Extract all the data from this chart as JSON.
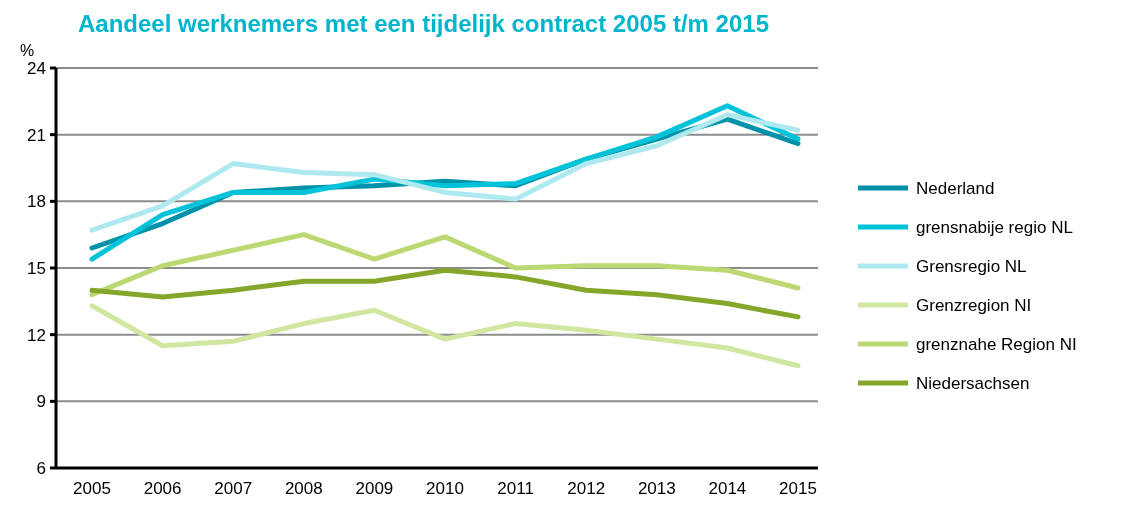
{
  "chart_data": {
    "type": "line",
    "title": "Aandeel werknemers met een tijdelijk contract 2005 t/m 2015",
    "ylabel": "%",
    "categories": [
      "2005",
      "2006",
      "2007",
      "2008",
      "2009",
      "2010",
      "2011",
      "2012",
      "2013",
      "2014",
      "2015"
    ],
    "ylim": [
      6,
      24
    ],
    "yticks": [
      6,
      9,
      12,
      15,
      18,
      21,
      24
    ],
    "grid": "y",
    "legend": "right",
    "line_style": "solid",
    "marker": "none",
    "series": [
      {
        "name": "Nederland",
        "color": "#0092a8",
        "values": [
          15.9,
          17.0,
          18.4,
          18.6,
          18.7,
          18.9,
          18.7,
          19.9,
          20.8,
          21.7,
          20.6
        ]
      },
      {
        "name": "grensnabije regio NL",
        "color": "#00c3d9",
        "values": [
          15.4,
          17.4,
          18.4,
          18.4,
          19.0,
          18.7,
          18.8,
          19.9,
          20.9,
          22.3,
          20.8
        ]
      },
      {
        "name": "Grensregio NL",
        "color": "#aee9f0",
        "values": [
          16.7,
          17.8,
          19.7,
          19.3,
          19.2,
          18.4,
          18.1,
          19.7,
          20.5,
          21.9,
          21.2
        ]
      },
      {
        "name": "Grenzregion NI",
        "color": "#d1e6a0",
        "values": [
          13.3,
          11.5,
          11.7,
          12.5,
          13.1,
          11.8,
          12.5,
          12.2,
          11.8,
          11.4,
          10.6
        ]
      },
      {
        "name": "grenznahe Region NI",
        "color": "#bcd872",
        "values": [
          13.8,
          15.1,
          15.8,
          16.5,
          15.4,
          16.4,
          15.0,
          15.1,
          15.1,
          14.9,
          14.1
        ]
      },
      {
        "name": "Niedersachsen",
        "color": "#84a62a",
        "values": [
          14.0,
          13.7,
          14.0,
          14.4,
          14.4,
          14.9,
          14.6,
          14.0,
          13.8,
          13.4,
          12.8
        ]
      }
    ]
  }
}
